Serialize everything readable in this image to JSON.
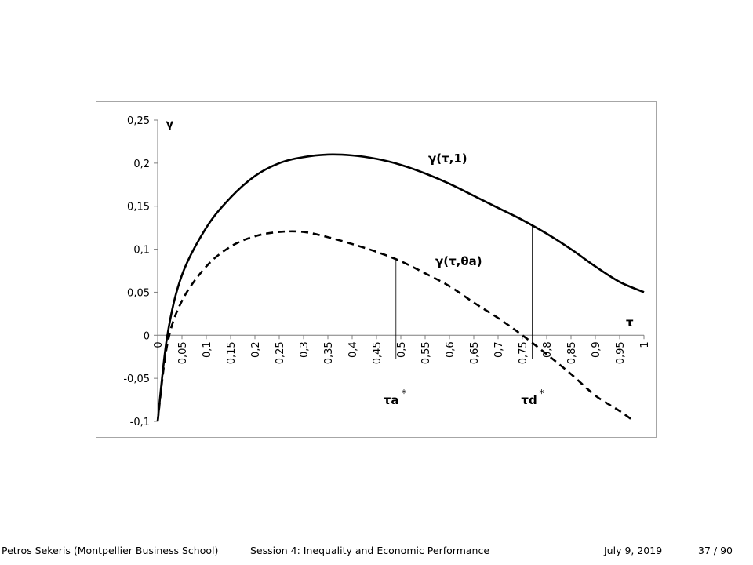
{
  "chart_data": {
    "type": "line",
    "title": "",
    "xlabel": "τ",
    "ylabel": "γ",
    "xlim": [
      0,
      1
    ],
    "ylim": [
      -0.1,
      0.25
    ],
    "y_ticks": [
      -0.1,
      -0.05,
      0,
      0.05,
      0.1,
      0.15,
      0.2,
      0.25
    ],
    "y_tick_labels": [
      "-0,1",
      "-0,05",
      "0",
      "0,05",
      "0,1",
      "0,15",
      "0,2",
      "0,25"
    ],
    "x_ticks": [
      0,
      0.05,
      0.1,
      0.15,
      0.2,
      0.25,
      0.3,
      0.35,
      0.4,
      0.45,
      0.5,
      0.55,
      0.6,
      0.65,
      0.7,
      0.75,
      0.8,
      0.85,
      0.9,
      0.95,
      1
    ],
    "x_tick_labels": [
      "0",
      "0,05",
      "0,1",
      "0,15",
      "0,2",
      "0,25",
      "0,3",
      "0,35",
      "0,4",
      "0,45",
      "0,5",
      "0,55",
      "0,6",
      "0,65",
      "0,7",
      "0,75",
      "0,8",
      "0,85",
      "0,9",
      "0,95",
      "1"
    ],
    "grid": false,
    "series": [
      {
        "name": "γ(τ,1)",
        "style": "solid",
        "x": [
          0.0,
          0.02,
          0.05,
          0.1,
          0.15,
          0.2,
          0.25,
          0.3,
          0.35,
          0.4,
          0.45,
          0.5,
          0.55,
          0.6,
          0.65,
          0.7,
          0.75,
          0.8,
          0.85,
          0.9,
          0.95,
          1.0
        ],
        "y": [
          -0.1,
          0.0,
          0.07,
          0.125,
          0.16,
          0.185,
          0.2,
          0.207,
          0.21,
          0.209,
          0.205,
          0.198,
          0.188,
          0.176,
          0.162,
          0.148,
          0.134,
          0.118,
          0.1,
          0.08,
          0.062,
          0.05
        ]
      },
      {
        "name": "γ(τ,θa)",
        "style": "dashed",
        "x": [
          0.0,
          0.02,
          0.05,
          0.1,
          0.15,
          0.2,
          0.25,
          0.3,
          0.35,
          0.4,
          0.45,
          0.5,
          0.55,
          0.6,
          0.65,
          0.7,
          0.75,
          0.8,
          0.85,
          0.9,
          0.95,
          0.98
        ],
        "y": [
          -0.1,
          -0.01,
          0.04,
          0.08,
          0.103,
          0.115,
          0.12,
          0.12,
          0.114,
          0.106,
          0.097,
          0.086,
          0.072,
          0.057,
          0.038,
          0.02,
          0.0,
          -0.022,
          -0.045,
          -0.07,
          -0.088,
          -0.1
        ]
      }
    ],
    "annotations": {
      "ta_label": "τa",
      "ta_sup": "*",
      "ta_x": 0.49,
      "td_label": "τd",
      "td_sup": "*",
      "td_x": 0.77
    }
  },
  "footer": {
    "author": "Petros Sekeris  (Montpellier Business School)",
    "session": "Session 4: Inequality and Economic Performance",
    "date": "July 9, 2019",
    "page": "37 / 90"
  }
}
